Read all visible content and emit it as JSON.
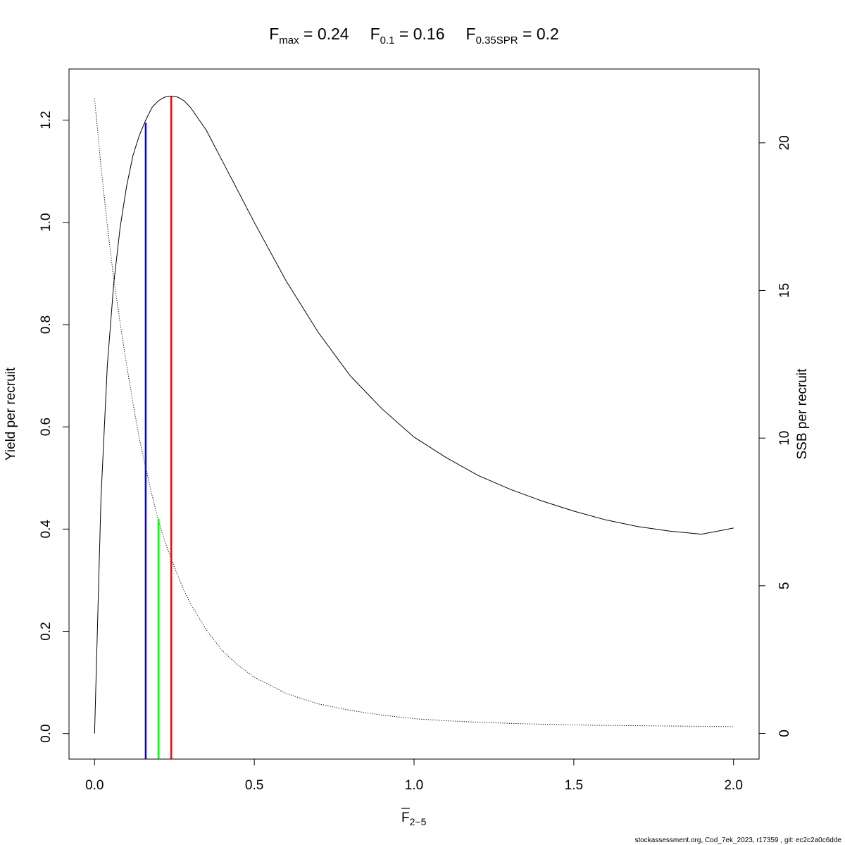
{
  "title": {
    "parts": [
      {
        "main": "F",
        "sub": "max",
        "eq": " = 0.24"
      },
      {
        "main": "F",
        "sub": "0.1",
        "eq": " = 0.16"
      },
      {
        "main": "F",
        "sub": "0.35SPR",
        "eq": " = 0.2"
      }
    ]
  },
  "footer": "stockassessment.org, Cod_7ek_2023, r17359 , git: ec2c2a0c6dde",
  "chart_data": {
    "type": "line",
    "xlabel": {
      "main": "F",
      "sub": "2−5"
    },
    "ylabel": "Yield per recruit",
    "y2label": "SSB per recruit",
    "xlim": [
      -0.08,
      2.08
    ],
    "ylim": [
      -0.05,
      1.3
    ],
    "y2lim": [
      -0.87,
      22.5
    ],
    "xticks": [
      0.0,
      0.5,
      1.0,
      1.5,
      2.0
    ],
    "xtick_labels": [
      "0.0",
      "0.5",
      "1.0",
      "1.5",
      "2.0"
    ],
    "yticks": [
      0.0,
      0.2,
      0.4,
      0.6,
      0.8,
      1.0,
      1.2
    ],
    "ytick_labels": [
      "0.0",
      "0.2",
      "0.4",
      "0.6",
      "0.8",
      "1.0",
      "1.2"
    ],
    "y2ticks": [
      0,
      5,
      10,
      15,
      20
    ],
    "y2tick_labels": [
      "0",
      "5",
      "10",
      "15",
      "20"
    ],
    "grid": false,
    "legend": "none",
    "series": [
      {
        "axis": "left",
        "style": "solid",
        "color": "#000000",
        "x": [
          0,
          0.02,
          0.04,
          0.06,
          0.08,
          0.1,
          0.12,
          0.14,
          0.16,
          0.18,
          0.2,
          0.22,
          0.24,
          0.26,
          0.28,
          0.3,
          0.35,
          0.4,
          0.45,
          0.5,
          0.6,
          0.7,
          0.8,
          0.9,
          1.0,
          1.1,
          1.2,
          1.3,
          1.4,
          1.5,
          1.6,
          1.7,
          1.8,
          1.9,
          2.0
        ],
        "y": [
          0,
          0.46,
          0.72,
          0.88,
          0.99,
          1.07,
          1.13,
          1.17,
          1.2,
          1.225,
          1.238,
          1.245,
          1.247,
          1.245,
          1.238,
          1.225,
          1.18,
          1.12,
          1.06,
          1.0,
          0.885,
          0.785,
          0.7,
          0.635,
          0.58,
          0.54,
          0.505,
          0.478,
          0.455,
          0.435,
          0.418,
          0.405,
          0.396,
          0.39,
          0.402
        ]
      },
      {
        "axis": "right",
        "style": "dotted",
        "color": "#000000",
        "x": [
          0,
          0.02,
          0.04,
          0.06,
          0.08,
          0.1,
          0.12,
          0.14,
          0.16,
          0.18,
          0.2,
          0.22,
          0.24,
          0.26,
          0.28,
          0.3,
          0.35,
          0.4,
          0.45,
          0.5,
          0.6,
          0.7,
          0.8,
          0.9,
          1.0,
          1.1,
          1.2,
          1.3,
          1.4,
          1.5,
          1.6,
          1.7,
          1.8,
          1.9,
          2.0
        ],
        "y": [
          21.5,
          19.2,
          17.2,
          15.4,
          13.9,
          12.5,
          11.2,
          10.0,
          9.0,
          8.05,
          7.2,
          6.5,
          5.9,
          5.35,
          4.85,
          4.4,
          3.5,
          2.8,
          2.3,
          1.9,
          1.35,
          1.0,
          0.78,
          0.62,
          0.5,
          0.43,
          0.38,
          0.34,
          0.31,
          0.29,
          0.27,
          0.26,
          0.25,
          0.24,
          0.23
        ]
      }
    ],
    "reference_lines": [
      {
        "x": 0.16,
        "y_top": 1.195,
        "color": "#0000ff"
      },
      {
        "x": 0.2,
        "y_top": 0.42,
        "color": "#00ff00"
      },
      {
        "x": 0.24,
        "y_top": 1.247,
        "color": "#ff0000"
      }
    ]
  }
}
